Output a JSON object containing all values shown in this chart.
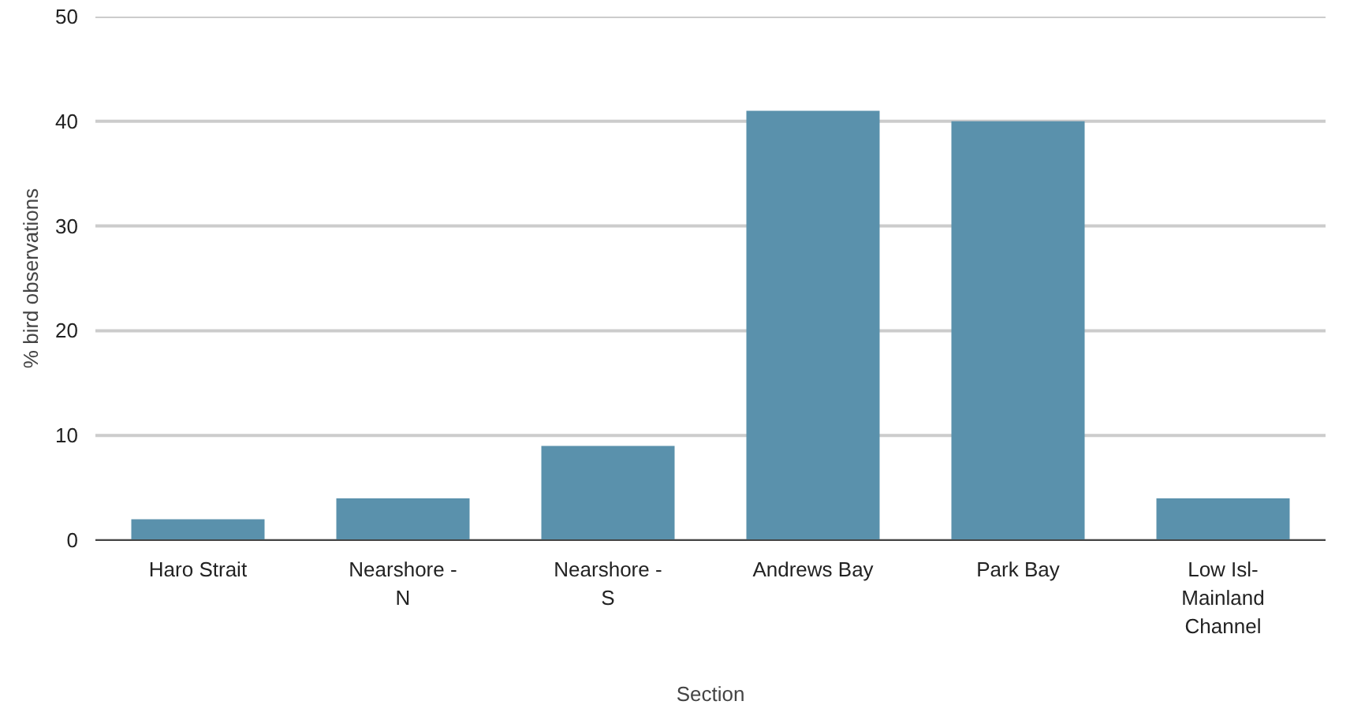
{
  "chart_data": {
    "type": "bar",
    "xlabel": "Section",
    "ylabel": "% bird observations",
    "categories": [
      "Haro Strait",
      "Nearshore - N",
      "Nearshore - S",
      "Andrews Bay",
      "Park Bay",
      "Low Isl-Mainland Channel"
    ],
    "values": [
      2,
      4,
      9,
      41,
      40,
      4
    ],
    "color": "#5a91ac",
    "ylim": [
      0,
      50
    ],
    "yticks": [
      0,
      10,
      20,
      30,
      40,
      50
    ],
    "grid": "y"
  }
}
